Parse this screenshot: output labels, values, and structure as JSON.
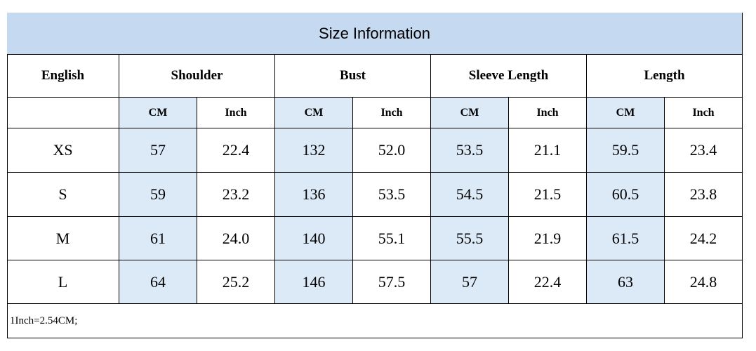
{
  "header": {
    "title": "Size Information"
  },
  "table": {
    "columns": [
      "English",
      "Shoulder",
      "Bust",
      "Sleeve Length",
      "Length"
    ],
    "units": [
      "CM",
      "Inch",
      "CM",
      "Inch",
      "CM",
      "Inch",
      "CM",
      "Inch"
    ],
    "rows": [
      [
        "XS",
        "57",
        "22.4",
        "132",
        "52.0",
        "53.5",
        "21.1",
        "59.5",
        "23.4"
      ],
      [
        "S",
        "59",
        "23.2",
        "136",
        "53.5",
        "54.5",
        "21.5",
        "60.5",
        "23.8"
      ],
      [
        "M",
        "61",
        "24.0",
        "140",
        "55.1",
        "55.5",
        "21.9",
        "61.5",
        "24.2"
      ],
      [
        "L",
        "64",
        "25.2",
        "146",
        "57.5",
        "57",
        "22.4",
        "63",
        "24.8"
      ]
    ]
  },
  "footnote": "1Inch=2.54CM;"
}
